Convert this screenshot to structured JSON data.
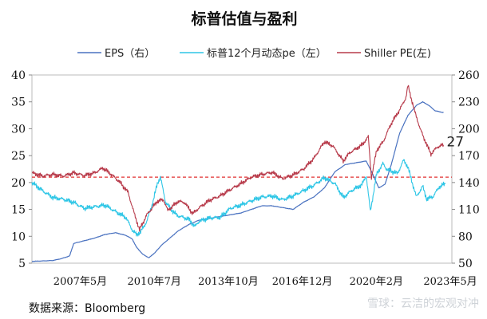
{
  "source_note": "数据来源：Bloomberg",
  "watermark": "雪球：云洁的宏观对冲",
  "chart_data": {
    "type": "line",
    "title": "标普估值与盈利",
    "x_ticks": [
      "2007年5月",
      "2010年7月",
      "2013年10月",
      "2016年12月",
      "2020年2月",
      "2023年5月"
    ],
    "y_left": {
      "min": 5,
      "max": 40,
      "ticks": [
        5,
        10,
        15,
        20,
        25,
        30,
        35,
        40
      ]
    },
    "y_right": {
      "min": 50,
      "max": 260,
      "ticks": [
        50,
        80,
        110,
        140,
        170,
        200,
        230,
        260
      ]
    },
    "reference_line": {
      "axis": "left",
      "value": 21,
      "color": "#e03030"
    },
    "annotation": {
      "text": "27",
      "x": 2023.85,
      "y": 27
    },
    "x_range": [
      2004.0,
      2024.1
    ],
    "series": [
      {
        "name": "EPS（右）",
        "axis": "right",
        "color": "#4a72c0",
        "points": [
          [
            2004.0,
            52
          ],
          [
            2005.0,
            53
          ],
          [
            2005.4,
            55
          ],
          [
            2005.8,
            58
          ],
          [
            2006.0,
            72
          ],
          [
            2006.5,
            75
          ],
          [
            2007.0,
            78
          ],
          [
            2007.5,
            82
          ],
          [
            2008.0,
            84
          ],
          [
            2008.5,
            81
          ],
          [
            2008.8,
            77
          ],
          [
            2009.0,
            68
          ],
          [
            2009.3,
            60
          ],
          [
            2009.6,
            56
          ],
          [
            2009.9,
            62
          ],
          [
            2010.2,
            70
          ],
          [
            2010.6,
            78
          ],
          [
            2011.0,
            86
          ],
          [
            2011.5,
            93
          ],
          [
            2012.0,
            98
          ],
          [
            2012.5,
            100
          ],
          [
            2013.0,
            102
          ],
          [
            2013.5,
            104
          ],
          [
            2014.0,
            106
          ],
          [
            2014.5,
            110
          ],
          [
            2015.0,
            114
          ],
          [
            2015.5,
            114
          ],
          [
            2016.0,
            112
          ],
          [
            2016.5,
            110
          ],
          [
            2017.0,
            118
          ],
          [
            2017.5,
            124
          ],
          [
            2018.0,
            134
          ],
          [
            2018.5,
            152
          ],
          [
            2019.0,
            160
          ],
          [
            2019.5,
            162
          ],
          [
            2020.0,
            164
          ],
          [
            2020.3,
            150
          ],
          [
            2020.6,
            134
          ],
          [
            2020.9,
            138
          ],
          [
            2021.2,
            160
          ],
          [
            2021.6,
            195
          ],
          [
            2022.0,
            215
          ],
          [
            2022.4,
            226
          ],
          [
            2022.7,
            230
          ],
          [
            2023.0,
            226
          ],
          [
            2023.3,
            220
          ],
          [
            2023.7,
            218
          ]
        ]
      },
      {
        "name": "标普12个月动态pe（左）",
        "axis": "left",
        "color": "#2ec6e6",
        "points": [
          [
            2004.0,
            20
          ],
          [
            2004.5,
            18.5
          ],
          [
            2005.0,
            17.2
          ],
          [
            2005.5,
            16.9
          ],
          [
            2006.0,
            16.3
          ],
          [
            2006.5,
            15.2
          ],
          [
            2007.0,
            15.5
          ],
          [
            2007.5,
            15.8
          ],
          [
            2008.0,
            14.6
          ],
          [
            2008.5,
            13.5
          ],
          [
            2008.8,
            11.2
          ],
          [
            2009.0,
            10.3
          ],
          [
            2009.2,
            10.8
          ],
          [
            2009.5,
            12.8
          ],
          [
            2009.8,
            16.5
          ],
          [
            2010.0,
            19.8
          ],
          [
            2010.15,
            21
          ],
          [
            2010.4,
            16.3
          ],
          [
            2010.8,
            14.4
          ],
          [
            2011.0,
            13.8
          ],
          [
            2011.5,
            13.2
          ],
          [
            2011.8,
            11.8
          ],
          [
            2012.0,
            12.8
          ],
          [
            2012.5,
            13.4
          ],
          [
            2013.0,
            13.5
          ],
          [
            2013.5,
            15.2
          ],
          [
            2014.0,
            15.8
          ],
          [
            2014.5,
            16.6
          ],
          [
            2015.0,
            17.3
          ],
          [
            2015.5,
            17.5
          ],
          [
            2016.0,
            16.8
          ],
          [
            2016.5,
            17.5
          ],
          [
            2017.0,
            18.5
          ],
          [
            2017.5,
            19.5
          ],
          [
            2018.0,
            20.9
          ],
          [
            2018.5,
            19.8
          ],
          [
            2018.9,
            17.2
          ],
          [
            2019.3,
            18.5
          ],
          [
            2019.8,
            19.6
          ],
          [
            2020.0,
            21.3
          ],
          [
            2020.2,
            14.6
          ],
          [
            2020.5,
            21.6
          ],
          [
            2020.8,
            23.5
          ],
          [
            2021.0,
            22.4
          ],
          [
            2021.5,
            21.7
          ],
          [
            2021.8,
            24.2
          ],
          [
            2022.0,
            22.8
          ],
          [
            2022.4,
            17.3
          ],
          [
            2022.7,
            19.3
          ],
          [
            2022.9,
            16.9
          ],
          [
            2023.2,
            17.4
          ],
          [
            2023.5,
            19.2
          ],
          [
            2023.8,
            19.8
          ]
        ]
      },
      {
        "name": "Shiller PE(左)",
        "axis": "left",
        "color": "#b73a4a",
        "points": [
          [
            2004.0,
            21.8
          ],
          [
            2004.5,
            21.2
          ],
          [
            2005.0,
            21.5
          ],
          [
            2005.5,
            21.2
          ],
          [
            2006.0,
            21.8
          ],
          [
            2006.5,
            21.3
          ],
          [
            2007.0,
            21.8
          ],
          [
            2007.4,
            22.7
          ],
          [
            2007.8,
            21.5
          ],
          [
            2008.2,
            20.1
          ],
          [
            2008.6,
            18.2
          ],
          [
            2008.9,
            14.2
          ],
          [
            2009.15,
            11.2
          ],
          [
            2009.5,
            14.0
          ],
          [
            2010.0,
            16.5
          ],
          [
            2010.3,
            16.8
          ],
          [
            2010.5,
            14.8
          ],
          [
            2011.0,
            16.5
          ],
          [
            2011.3,
            16.3
          ],
          [
            2011.7,
            14.2
          ],
          [
            2012.0,
            15.3
          ],
          [
            2012.5,
            16.7
          ],
          [
            2013.0,
            17.5
          ],
          [
            2013.5,
            18.7
          ],
          [
            2014.0,
            19.8
          ],
          [
            2014.5,
            21.0
          ],
          [
            2015.0,
            21.5
          ],
          [
            2015.5,
            21.9
          ],
          [
            2016.0,
            20.7
          ],
          [
            2016.5,
            21.4
          ],
          [
            2017.0,
            22.5
          ],
          [
            2017.5,
            24.5
          ],
          [
            2018.0,
            27.6
          ],
          [
            2018.4,
            26.8
          ],
          [
            2018.9,
            24.0
          ],
          [
            2019.2,
            25.5
          ],
          [
            2019.8,
            27.0
          ],
          [
            2020.1,
            28.5
          ],
          [
            2020.25,
            20.9
          ],
          [
            2020.5,
            26.0
          ],
          [
            2020.8,
            27.5
          ],
          [
            2021.2,
            31.0
          ],
          [
            2021.6,
            33.5
          ],
          [
            2021.9,
            35.8
          ],
          [
            2022.0,
            38.0
          ],
          [
            2022.3,
            33.5
          ],
          [
            2022.6,
            29.8
          ],
          [
            2022.9,
            27.0
          ],
          [
            2023.1,
            25.3
          ],
          [
            2023.4,
            26.6
          ],
          [
            2023.7,
            27.0
          ]
        ]
      }
    ]
  }
}
